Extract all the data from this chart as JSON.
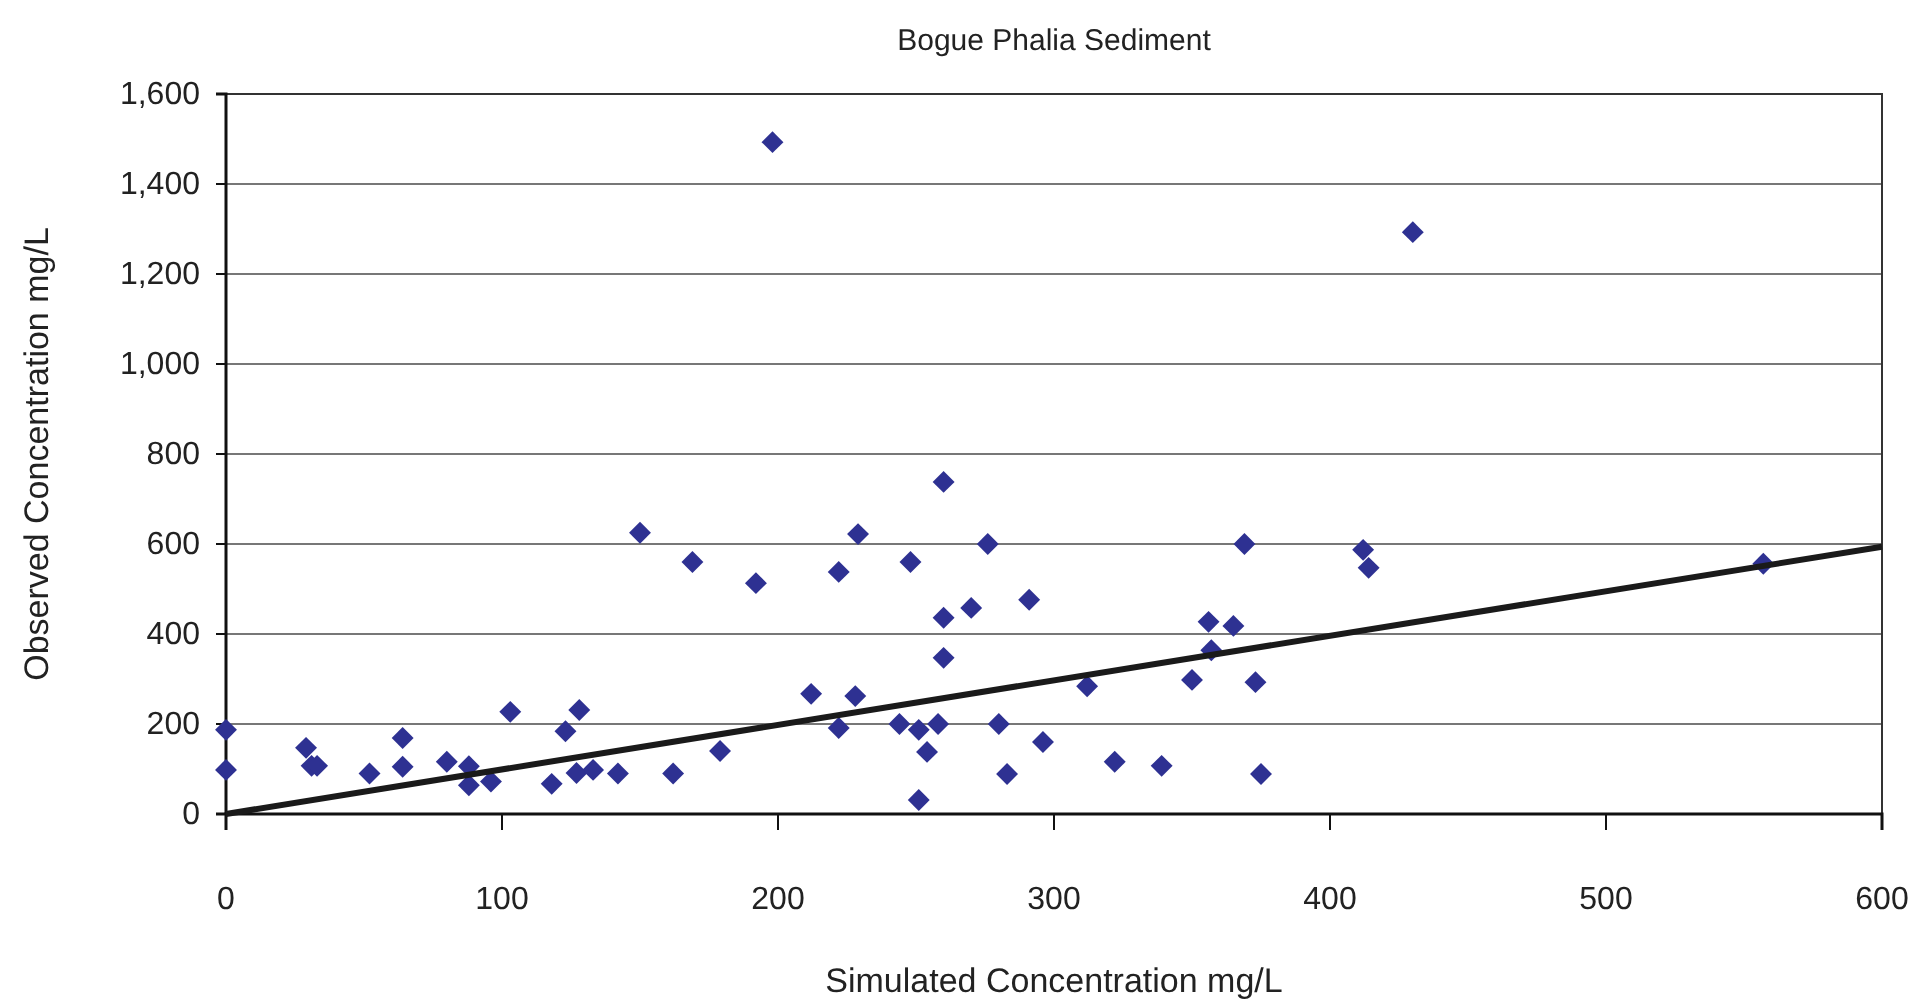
{
  "chart_data": {
    "type": "scatter",
    "title": "Bogue Phalia Sediment",
    "xlabel": "Simulated Concentration mg/L",
    "ylabel": "Observed Concentration mg/L",
    "xlim": [
      0,
      600
    ],
    "xticks": [
      0,
      100,
      200,
      300,
      400,
      500,
      600
    ],
    "ylim": [
      0,
      1600
    ],
    "yticks": [
      0,
      {
        "value": 200,
        "label": "200"
      },
      {
        "value": 400,
        "label": "400"
      },
      {
        "value": 600,
        "label": "600"
      },
      {
        "value": 800,
        "label": "800"
      },
      {
        "value": 1000,
        "label": "1,000"
      },
      {
        "value": 1200,
        "label": "1,200"
      },
      {
        "value": 1400,
        "label": "1,400"
      },
      {
        "value": 1600,
        "label": "1,600"
      }
    ],
    "grid": "y",
    "marker": "diamond",
    "series": [
      {
        "color": "#2e3192",
        "x": [
          0,
          0,
          29,
          31,
          33,
          52,
          64,
          64,
          80,
          88,
          88,
          96,
          103,
          118,
          123,
          128,
          127,
          133,
          142,
          150,
          162,
          169,
          179,
          192,
          198,
          212,
          222,
          222,
          228,
          229,
          244,
          248,
          251,
          251,
          254,
          258,
          260,
          260,
          260,
          270,
          276,
          280,
          283,
          291,
          296,
          312,
          322,
          339,
          350,
          356,
          357,
          365,
          369,
          373,
          375,
          412,
          414,
          430,
          557
        ],
        "values": [
          187,
          98,
          147,
          107,
          107,
          90,
          169,
          105,
          116,
          106,
          64,
          72,
          227,
          67,
          184,
          231,
          91,
          98,
          90,
          625,
          90,
          560,
          140,
          513,
          1493,
          267,
          538,
          191,
          262,
          622,
          200,
          560,
          187,
          31,
          138,
          200,
          738,
          436,
          347,
          458,
          600,
          200,
          89,
          476,
          160,
          284,
          116,
          107,
          298,
          427,
          364,
          418,
          600,
          293,
          89,
          587,
          547,
          1293,
          556
        ]
      },
      {
        "type": "line",
        "color": "#1a1a1a",
        "marker": "none",
        "line_style": "solid",
        "x": [
          0,
          600
        ],
        "values": [
          0,
          594
        ]
      }
    ]
  }
}
